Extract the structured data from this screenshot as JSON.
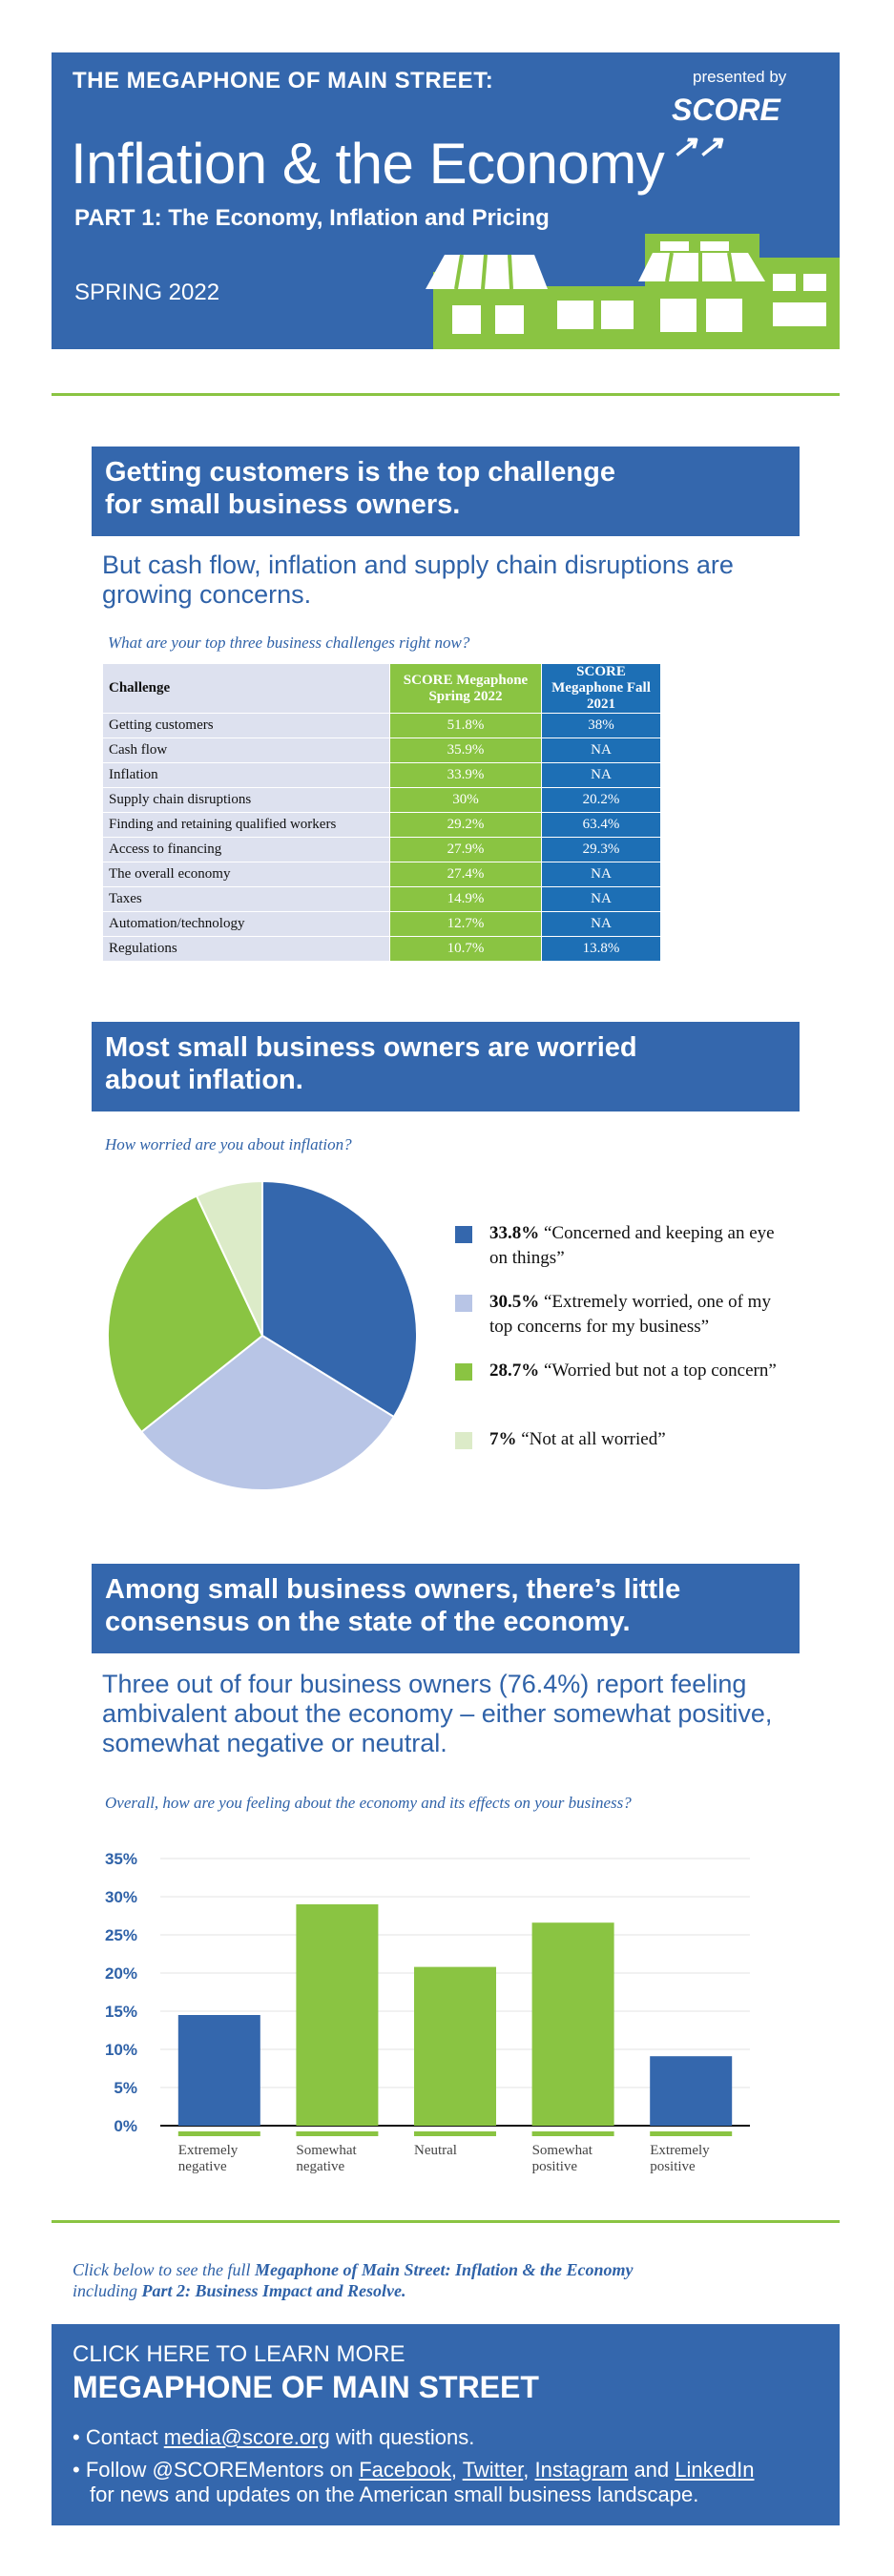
{
  "header": {
    "kicker": "THE MEGAPHONE OF MAIN STREET:",
    "title": "Inflation & the Economy",
    "subtitle": "PART 1: The Economy, Inflation and Pricing",
    "season": "SPRING 2022",
    "presented_by": "presented by",
    "logo_text": "SCORE"
  },
  "section1": {
    "banner": [
      "Getting customers is the top challenge",
      "for small business owners."
    ],
    "lead": [
      "But cash flow, inflation and supply chain disruptions are",
      "growing concerns."
    ],
    "question": "What are your top three business challenges right now?",
    "table": {
      "headers": [
        "Challenge",
        "SCORE Megaphone Spring 2022",
        "SCORE Megaphone Fall 2021"
      ],
      "rows": [
        [
          "Getting customers",
          "51.8%",
          "38%"
        ],
        [
          "Cash flow",
          "35.9%",
          "NA"
        ],
        [
          "Inflation",
          "33.9%",
          "NA"
        ],
        [
          "Supply chain disruptions",
          "30%",
          "20.2%"
        ],
        [
          "Finding and retaining qualified workers",
          "29.2%",
          "63.4%"
        ],
        [
          "Access to financing",
          "27.9%",
          "29.3%"
        ],
        [
          "The overall economy",
          "27.4%",
          "NA"
        ],
        [
          "Taxes",
          "14.9%",
          "NA"
        ],
        [
          "Automation/technology",
          "12.7%",
          "NA"
        ],
        [
          "Regulations",
          "10.7%",
          "13.8%"
        ]
      ]
    }
  },
  "section2": {
    "banner": [
      "Most small business owners are worried",
      "about inflation."
    ],
    "question": "How worried are you about inflation?"
  },
  "section3": {
    "banner": [
      "Among small business owners, there’s little",
      "consensus on the state of the economy."
    ],
    "lead": [
      "Three out of four business owners (76.4%) report feeling",
      "ambivalent about the economy – either somewhat positive,",
      "somewhat negative or neutral."
    ],
    "question": "Overall, how are you feeling about the economy and its effects on your business?"
  },
  "chart_data": [
    {
      "type": "pie",
      "title": "How worried are you about inflation?",
      "slices": [
        {
          "pct": "33.8%",
          "label": "“Concerned and keeping an eye on things”",
          "value": 33.8,
          "color": "#3467ad"
        },
        {
          "pct": "30.5%",
          "label": "“Extremely worried, one of my top concerns for my business”",
          "value": 30.5,
          "color": "#b8c5e6"
        },
        {
          "pct": "28.7%",
          "label": "“Worried but not a top concern”",
          "value": 28.7,
          "color": "#8ac442"
        },
        {
          "pct": "7%",
          "label": "“Not at all worried”",
          "value": 7,
          "color": "#dcebc8"
        }
      ]
    },
    {
      "type": "bar",
      "title": "Overall, how are you feeling about the economy and its effects on your business?",
      "categories": [
        "Extremely negative",
        "Somewhat negative",
        "Neutral",
        "Somewhat positive",
        "Extremely positive"
      ],
      "values": [
        14.5,
        29,
        20.8,
        26.6,
        9.1
      ],
      "colors": [
        "#3467ad",
        "#8ac442",
        "#8ac442",
        "#8ac442",
        "#3467ad"
      ],
      "ylim": [
        0,
        35
      ],
      "yticks": [
        "0%",
        "5%",
        "10%",
        "15%",
        "20%",
        "25%",
        "30%",
        "35%"
      ],
      "grid": true
    }
  ],
  "footer": {
    "note_prefix": "Click below to see the full ",
    "note_bold": "Megaphone of Main Street: Inflation & the Economy",
    "note_line2_prefix": "including ",
    "note_line2_bold": "Part 2: Business Impact and Resolve.",
    "cta": "CLICK HERE TO LEARN MORE",
    "title": "MEGAPHONE OF MAIN STREET",
    "contact_prefix": "• Contact ",
    "contact_link": "media@score.org",
    "contact_suffix": " with questions.",
    "follow_prefix": "• Follow @SCOREMentors on ",
    "facebook": "Facebook",
    "twitter": "Twitter",
    "instagram": "Instagram",
    "linkedin": "LinkedIn",
    "and": " and ",
    "comma": ", ",
    "follow_line2": "for news and updates on the American small business landscape."
  }
}
